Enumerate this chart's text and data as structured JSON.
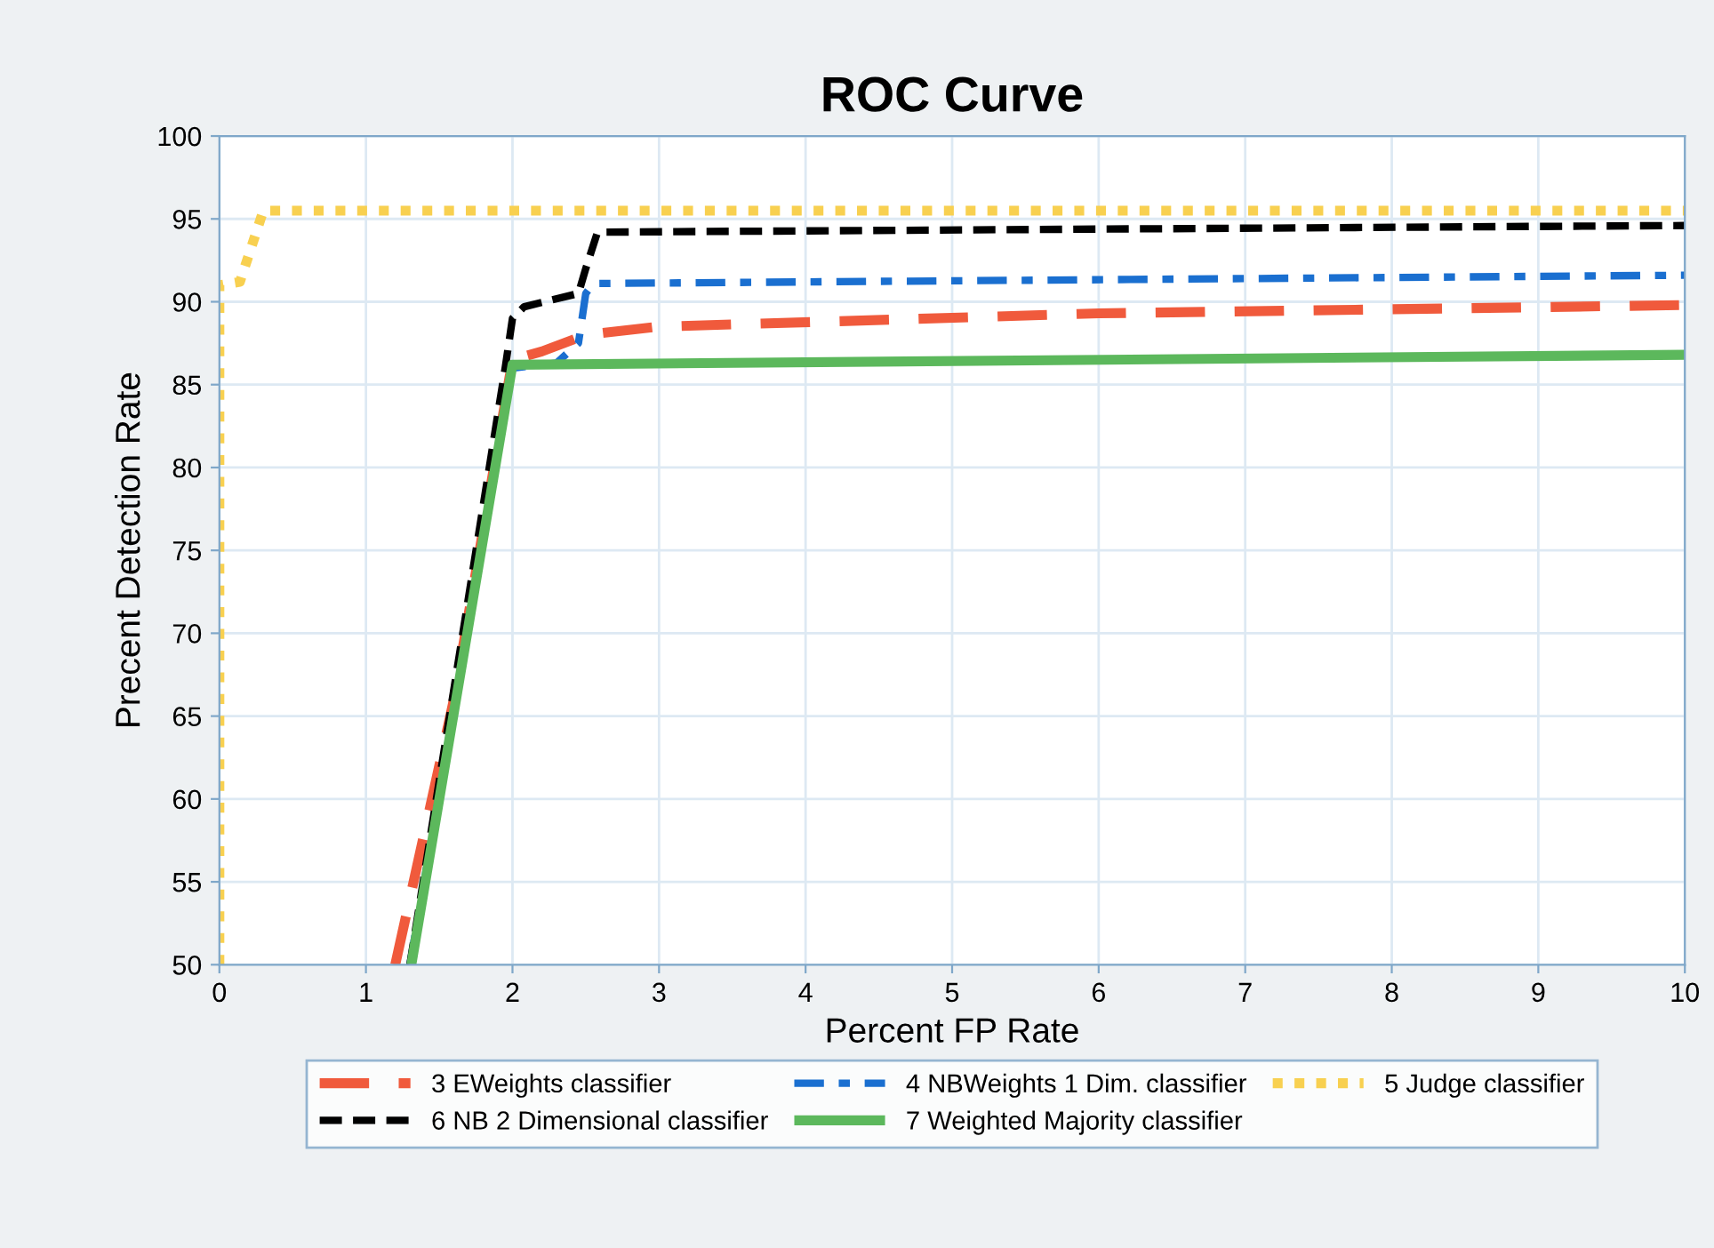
{
  "chart_data": {
    "type": "line",
    "title": "ROC Curve",
    "xlabel": "Percent FP Rate",
    "ylabel": "Precent Detection Rate",
    "xlim": [
      0,
      10
    ],
    "ylim": [
      50,
      100
    ],
    "xticks": [
      0,
      1,
      2,
      3,
      4,
      5,
      6,
      7,
      8,
      9,
      10
    ],
    "yticks": [
      50,
      55,
      60,
      65,
      70,
      75,
      80,
      85,
      90,
      95,
      100
    ],
    "grid": true,
    "legend": "bottom",
    "marker": "none",
    "series": [
      {
        "name": "3 EWeights classifier",
        "color": "#f05a3c",
        "line_style": "longdash",
        "x": [
          1.2,
          1.6,
          2.0,
          2.2,
          2.5,
          3.0,
          6.0,
          10
        ],
        "values": [
          50,
          66,
          86.5,
          87,
          88,
          88.5,
          89.3,
          89.8
        ]
      },
      {
        "name": "4 NBWeights 1 Dim. classifier",
        "color": "#1a6fd0",
        "line_style": "dashdot",
        "x": [
          1.3,
          2.0,
          2.3,
          2.45,
          2.5,
          2.55,
          10
        ],
        "values": [
          50,
          86,
          86.3,
          87.5,
          90.5,
          91.1,
          91.6
        ]
      },
      {
        "name": "5 Judge classifier",
        "color": "#f8d050",
        "line_style": "dotted",
        "x": [
          0,
          0,
          0.14,
          0.3,
          10
        ],
        "values": [
          50,
          91,
          91.2,
          95.5,
          95.5
        ]
      },
      {
        "name": "6 NB 2 Dimensional classifier",
        "color": "#000000",
        "line_style": "dashed",
        "x": [
          1.3,
          1.95,
          2.0,
          2.08,
          2.45,
          2.5,
          2.58,
          10
        ],
        "values": [
          50,
          86,
          89,
          89.7,
          90.5,
          92,
          94.2,
          94.6
        ]
      },
      {
        "name": "7 Weighted Majority classifier",
        "color": "#5cb85c",
        "line_style": "solid",
        "x": [
          1.31,
          2.0,
          10
        ],
        "values": [
          50,
          86.2,
          86.8
        ]
      }
    ]
  }
}
